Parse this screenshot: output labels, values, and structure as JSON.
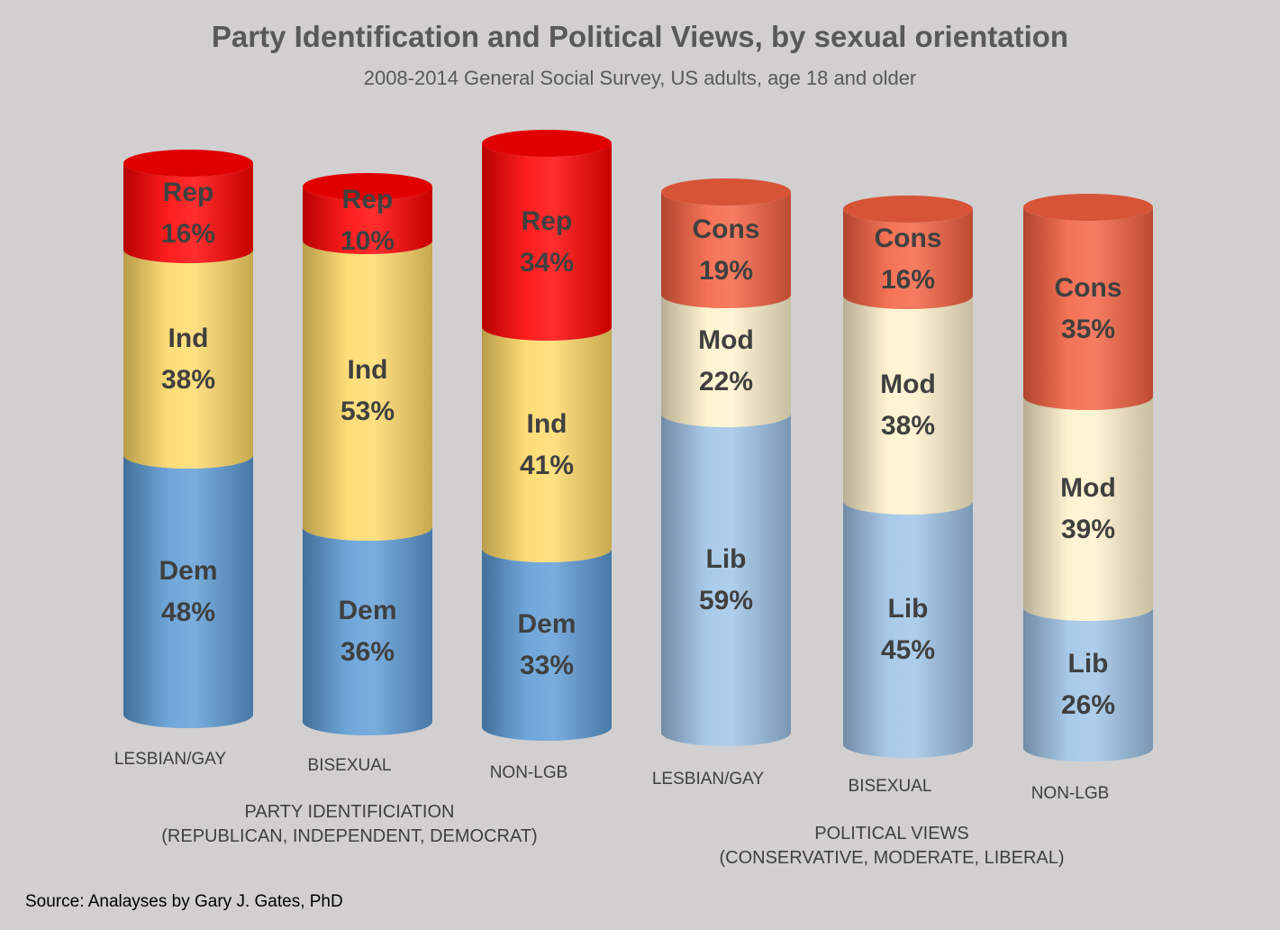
{
  "title": "Party Identification and Political Views, by sexual orientation",
  "subtitle": "2008-2014 General Social Survey, US adults, age 18 and older",
  "source": "Source: Analayses by Gary J. Gates, PhD",
  "group_labels": [
    {
      "line1": "PARTY IDENTIFICIATION",
      "line2": "(REPUBLICAN, INDEPENDENT, DEMOCRAT)"
    },
    {
      "line1": "POLITICAL VIEWS",
      "line2": "(CONSERVATIVE, MODERATE, LIBERAL)"
    }
  ],
  "colors": {
    "background": "#d1cfd0",
    "Rep": "#ff0000",
    "Ind": "#ffd966",
    "Dem": "#5b9bd5",
    "Cons": "#f4603f",
    "Mod": "#fff2cc",
    "Lib": "#9dc3e6"
  },
  "chart_data": {
    "type": "bar",
    "stacked": true,
    "shape": "cylinder",
    "percent": true,
    "categories": [
      "LESBIAN/GAY",
      "BISEXUAL",
      "NON-LGB",
      "LESBIAN/GAY",
      "BISEXUAL",
      "NON-LGB"
    ],
    "bars": [
      {
        "category": "LESBIAN/GAY",
        "group": "party",
        "segments": [
          {
            "label": "Rep",
            "value": 16,
            "text": "16%"
          },
          {
            "label": "Ind",
            "value": 38,
            "text": "38%"
          },
          {
            "label": "Dem",
            "value": 48,
            "text": "48%"
          }
        ]
      },
      {
        "category": "BISEXUAL",
        "group": "party",
        "segments": [
          {
            "label": "Rep",
            "value": 10,
            "text": "10%"
          },
          {
            "label": "Ind",
            "value": 53,
            "text": "53%"
          },
          {
            "label": "Dem",
            "value": 36,
            "text": "36%"
          }
        ]
      },
      {
        "category": "NON-LGB",
        "group": "party",
        "segments": [
          {
            "label": "Rep",
            "value": 34,
            "text": "34%"
          },
          {
            "label": "Ind",
            "value": 41,
            "text": "41%"
          },
          {
            "label": "Dem",
            "value": 33,
            "text": "33%"
          }
        ]
      },
      {
        "category": "LESBIAN/GAY",
        "group": "views",
        "segments": [
          {
            "label": "Cons",
            "value": 19,
            "text": "19%"
          },
          {
            "label": "Mod",
            "value": 22,
            "text": "22%"
          },
          {
            "label": "Lib",
            "value": 59,
            "text": "59%"
          }
        ]
      },
      {
        "category": "BISEXUAL",
        "group": "views",
        "segments": [
          {
            "label": "Cons",
            "value": 16,
            "text": "16%"
          },
          {
            "label": "Mod",
            "value": 38,
            "text": "38%"
          },
          {
            "label": "Lib",
            "value": 45,
            "text": "45%"
          }
        ]
      },
      {
        "category": "NON-LGB",
        "group": "views",
        "segments": [
          {
            "label": "Cons",
            "value": 35,
            "text": "35%"
          },
          {
            "label": "Mod",
            "value": 39,
            "text": "39%"
          },
          {
            "label": "Lib",
            "value": 26,
            "text": "26%"
          }
        ]
      }
    ],
    "legend": "none",
    "grid": false
  }
}
